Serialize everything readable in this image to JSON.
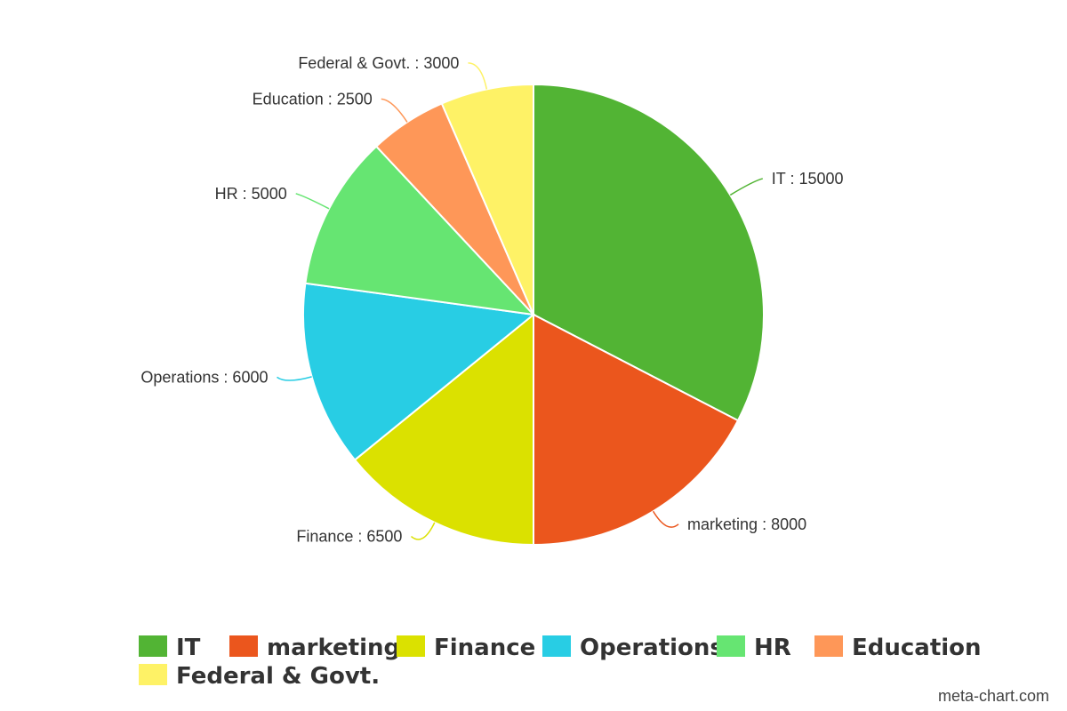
{
  "chart_data": {
    "type": "pie",
    "title": "",
    "slices": [
      {
        "label": "IT",
        "value": 15000,
        "color": "#52b434",
        "display": "IT : 15000"
      },
      {
        "label": "marketing",
        "value": 8000,
        "color": "#eb561d",
        "display": "marketing : 8000"
      },
      {
        "label": "Finance",
        "value": 6500,
        "color": "#dbe100",
        "display": "Finance : 6500"
      },
      {
        "label": "Operations",
        "value": 6000,
        "color": "#28cde4",
        "display": "Operations : 6000"
      },
      {
        "label": "HR",
        "value": 5000,
        "color": "#66e572",
        "display": "HR : 5000"
      },
      {
        "label": "Education",
        "value": 2500,
        "color": "#fe9758",
        "display": "Education : 2500"
      },
      {
        "label": "Federal & Govt.",
        "value": 3000,
        "color": "#fef266",
        "display": "Federal & Govt. : 3000"
      }
    ],
    "legend": {
      "position": "bottom"
    }
  },
  "credit": "meta-chart.com"
}
